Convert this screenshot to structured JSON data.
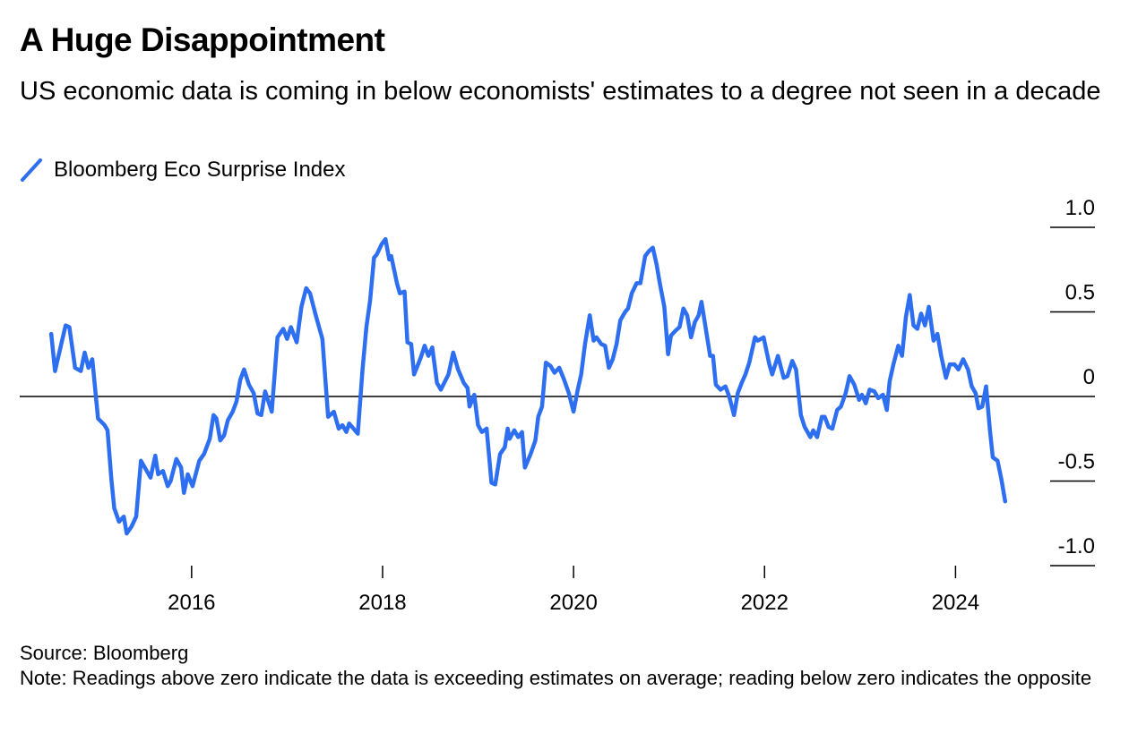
{
  "chart_data": {
    "type": "line",
    "title": "A Huge Disappointment",
    "subtitle": "US economic data is coming in below economists' estimates to a degree not seen in a decade",
    "source": "Source: Bloomberg",
    "note": "Note: Readings above zero indicate the data is exceeding estimates on average; reading below zero indicates the opposite",
    "xlim": [
      2014.2,
      2025.46
    ],
    "xticks": [
      2016,
      2018,
      2020,
      2022,
      2024
    ],
    "ylim": [
      -1,
      1
    ],
    "yticks": [
      {
        "value": 1,
        "label": "1.0"
      },
      0.5,
      0,
      -0.5,
      {
        "value": -1,
        "label": "-1.0"
      }
    ],
    "x": [
      2014.53,
      2014.57,
      2014.68,
      2014.72,
      2014.78,
      2014.84,
      2014.88,
      2014.92,
      2014.96,
      2015.02,
      2015.09,
      2015.12,
      2015.16,
      2015.19,
      2015.24,
      2015.29,
      2015.32,
      2015.37,
      2015.42,
      2015.47,
      2015.52,
      2015.57,
      2015.62,
      2015.65,
      2015.7,
      2015.75,
      2015.78,
      2015.84,
      2015.89,
      2015.92,
      2015.96,
      2016.01,
      2016.08,
      2016.13,
      2016.19,
      2016.23,
      2016.26,
      2016.3,
      2016.34,
      2016.38,
      2016.43,
      2016.47,
      2016.51,
      2016.55,
      2016.6,
      2016.65,
      2016.69,
      2016.73,
      2016.77,
      2016.84,
      2016.9,
      2016.96,
      2017.0,
      2017.04,
      2017.1,
      2017.15,
      2017.2,
      2017.24,
      2017.3,
      2017.37,
      2017.43,
      2017.49,
      2017.54,
      2017.58,
      2017.62,
      2017.65,
      2017.74,
      2017.79,
      2017.83,
      2017.87,
      2017.91,
      2017.94,
      2017.99,
      2018.03,
      2018.07,
      2018.09,
      2018.15,
      2018.18,
      2018.23,
      2018.26,
      2018.3,
      2018.33,
      2018.4,
      2018.44,
      2018.48,
      2018.52,
      2018.57,
      2018.61,
      2018.69,
      2018.74,
      2018.79,
      2018.85,
      2018.89,
      2018.91,
      2018.96,
      2019.0,
      2019.04,
      2019.09,
      2019.14,
      2019.18,
      2019.23,
      2019.28,
      2019.31,
      2019.33,
      2019.38,
      2019.42,
      2019.46,
      2019.49,
      2019.55,
      2019.6,
      2019.63,
      2019.67,
      2019.71,
      2019.76,
      2019.8,
      2019.85,
      2019.9,
      2019.95,
      2020.0,
      2020.04,
      2020.08,
      2020.12,
      2020.17,
      2020.21,
      2020.24,
      2020.29,
      2020.33,
      2020.37,
      2020.41,
      2020.45,
      2020.49,
      2020.54,
      2020.57,
      2020.61,
      2020.66,
      2020.7,
      2020.75,
      2020.79,
      2020.83,
      2020.87,
      2020.9,
      2020.95,
      2020.99,
      2021.02,
      2021.07,
      2021.11,
      2021.15,
      2021.19,
      2021.23,
      2021.27,
      2021.31,
      2021.34,
      2021.39,
      2021.43,
      2021.46,
      2021.49,
      2021.54,
      2021.59,
      2021.63,
      2021.68,
      2021.72,
      2021.76,
      2021.8,
      2021.84,
      2021.9,
      2021.93,
      2021.99,
      2022.05,
      2022.08,
      2022.14,
      2022.2,
      2022.24,
      2022.29,
      2022.33,
      2022.38,
      2022.42,
      2022.48,
      2022.51,
      2022.55,
      2022.6,
      2022.63,
      2022.67,
      2022.71,
      2022.76,
      2022.8,
      2022.85,
      2022.89,
      2022.94,
      2022.99,
      2023.02,
      2023.06,
      2023.1,
      2023.15,
      2023.19,
      2023.24,
      2023.28,
      2023.31,
      2023.35,
      2023.4,
      2023.44,
      2023.48,
      2023.52,
      2023.56,
      2023.6,
      2023.64,
      2023.68,
      2023.72,
      2023.77,
      2023.81,
      2023.85,
      2023.9,
      2023.94,
      2023.99,
      2024.03,
      2024.08,
      2024.13,
      2024.17,
      2024.21,
      2024.24,
      2024.28,
      2024.32,
      2024.36,
      2024.39,
      2024.44,
      2024.48,
      2024.52
    ],
    "series": [
      {
        "name": "Bloomberg Eco Surprise Index",
        "color": "#2d6ff0",
        "values": [
          0.37,
          0.15,
          0.42,
          0.41,
          0.17,
          0.15,
          0.26,
          0.17,
          0.22,
          -0.13,
          -0.17,
          -0.2,
          -0.49,
          -0.66,
          -0.74,
          -0.71,
          -0.81,
          -0.77,
          -0.71,
          -0.38,
          -0.43,
          -0.48,
          -0.35,
          -0.46,
          -0.44,
          -0.53,
          -0.5,
          -0.37,
          -0.42,
          -0.57,
          -0.46,
          -0.53,
          -0.38,
          -0.34,
          -0.25,
          -0.11,
          -0.13,
          -0.26,
          -0.23,
          -0.14,
          -0.09,
          -0.03,
          0.1,
          0.16,
          0.07,
          0.02,
          -0.1,
          -0.11,
          0.03,
          -0.09,
          0.35,
          0.4,
          0.34,
          0.41,
          0.32,
          0.53,
          0.64,
          0.61,
          0.48,
          0.34,
          -0.12,
          -0.09,
          -0.19,
          -0.17,
          -0.21,
          -0.16,
          -0.22,
          0.16,
          0.41,
          0.57,
          0.82,
          0.84,
          0.9,
          0.93,
          0.81,
          0.83,
          0.67,
          0.61,
          0.62,
          0.32,
          0.31,
          0.13,
          0.23,
          0.3,
          0.24,
          0.29,
          0.08,
          0.04,
          0.13,
          0.26,
          0.16,
          0.08,
          0.05,
          -0.06,
          0.01,
          -0.17,
          -0.21,
          -0.19,
          -0.51,
          -0.52,
          -0.34,
          -0.3,
          -0.19,
          -0.25,
          -0.2,
          -0.24,
          -0.21,
          -0.42,
          -0.34,
          -0.26,
          -0.12,
          -0.06,
          0.2,
          0.18,
          0.14,
          0.17,
          0.1,
          0.02,
          -0.09,
          0.03,
          0.13,
          0.31,
          0.48,
          0.33,
          0.35,
          0.31,
          0.3,
          0.17,
          0.22,
          0.31,
          0.45,
          0.5,
          0.52,
          0.61,
          0.67,
          0.67,
          0.83,
          0.86,
          0.88,
          0.78,
          0.68,
          0.53,
          0.25,
          0.36,
          0.39,
          0.41,
          0.52,
          0.48,
          0.35,
          0.44,
          0.48,
          0.56,
          0.38,
          0.24,
          0.24,
          0.07,
          0.04,
          0.06,
          0.0,
          -0.11,
          0.02,
          0.08,
          0.13,
          0.2,
          0.35,
          0.33,
          0.35,
          0.19,
          0.13,
          0.24,
          0.11,
          0.12,
          0.21,
          0.16,
          -0.11,
          -0.18,
          -0.24,
          -0.2,
          -0.24,
          -0.12,
          -0.12,
          -0.18,
          -0.19,
          -0.08,
          -0.06,
          0.02,
          0.12,
          0.07,
          -0.02,
          0.01,
          -0.04,
          0.04,
          0.03,
          -0.01,
          0.01,
          -0.08,
          0.09,
          0.19,
          0.3,
          0.24,
          0.47,
          0.6,
          0.42,
          0.4,
          0.49,
          0.42,
          0.53,
          0.33,
          0.37,
          0.24,
          0.11,
          0.19,
          0.19,
          0.16,
          0.22,
          0.16,
          0.06,
          0.02,
          -0.07,
          -0.06,
          0.06,
          -0.2,
          -0.36,
          -0.38,
          -0.49,
          -0.62
        ]
      }
    ]
  }
}
